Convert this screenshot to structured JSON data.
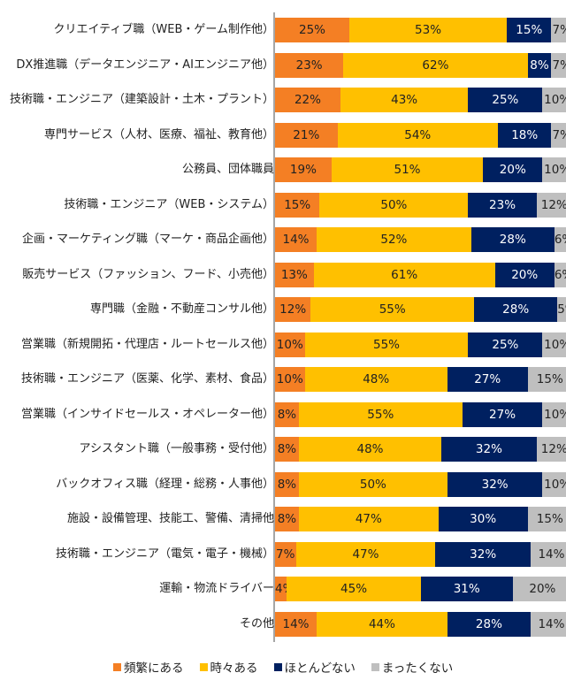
{
  "chart_data": {
    "type": "bar",
    "orientation": "horizontal",
    "stacked": true,
    "xlim": [
      0,
      100
    ],
    "grid": false,
    "legend_position": "bottom",
    "categories": [
      "クリエイティブ職（WEB・ゲーム制作他）",
      "DX推進職（データエンジニア・AIエンジニア他）",
      "技術職・エンジニア（建築設計・土木・プラント）",
      "専門サービス（人材、医療、福祉、教育他）",
      "公務員、団体職員",
      "技術職・エンジニア（WEB・システム）",
      "企画・マーケティング職（マーケ・商品企画他）",
      "販売サービス（ファッション、フード、小売他）",
      "専門職（金融・不動産コンサル他）",
      "営業職（新規開拓・代理店・ルートセールス他）",
      "技術職・エンジニア（医薬、化学、素材、食品）",
      "営業職（インサイドセールス・オペレーター他）",
      "アシスタント職（一般事務・受付他）",
      "バックオフィス職（経理・総務・人事他）",
      "施設・設備管理、技能工、警備、清掃他",
      "技術職・エンジニア（電気・電子・機械）",
      "運輸・物流ドライバー",
      "その他"
    ],
    "series": [
      {
        "name": "頻繁にある",
        "color": "#F47F24",
        "label_color": "#222222",
        "values": [
          25,
          23,
          22,
          21,
          19,
          15,
          14,
          13,
          12,
          10,
          10,
          8,
          8,
          8,
          8,
          7,
          4,
          14
        ]
      },
      {
        "name": "時々ある",
        "color": "#FFC000",
        "label_color": "#222222",
        "values": [
          53,
          62,
          43,
          54,
          51,
          50,
          52,
          61,
          55,
          55,
          48,
          55,
          48,
          50,
          47,
          47,
          45,
          44
        ]
      },
      {
        "name": "ほとんどない",
        "color": "#002060",
        "label_color": "#ffffff",
        "values": [
          15,
          8,
          25,
          18,
          20,
          23,
          28,
          20,
          28,
          25,
          27,
          27,
          32,
          32,
          30,
          32,
          31,
          28
        ]
      },
      {
        "name": "まったくない",
        "color": "#BFBFBF",
        "label_color": "#222222",
        "values": [
          7,
          7,
          10,
          7,
          10,
          12,
          6,
          6,
          5,
          10,
          15,
          10,
          12,
          10,
          15,
          14,
          20,
          14
        ]
      }
    ],
    "value_suffix": "%"
  }
}
